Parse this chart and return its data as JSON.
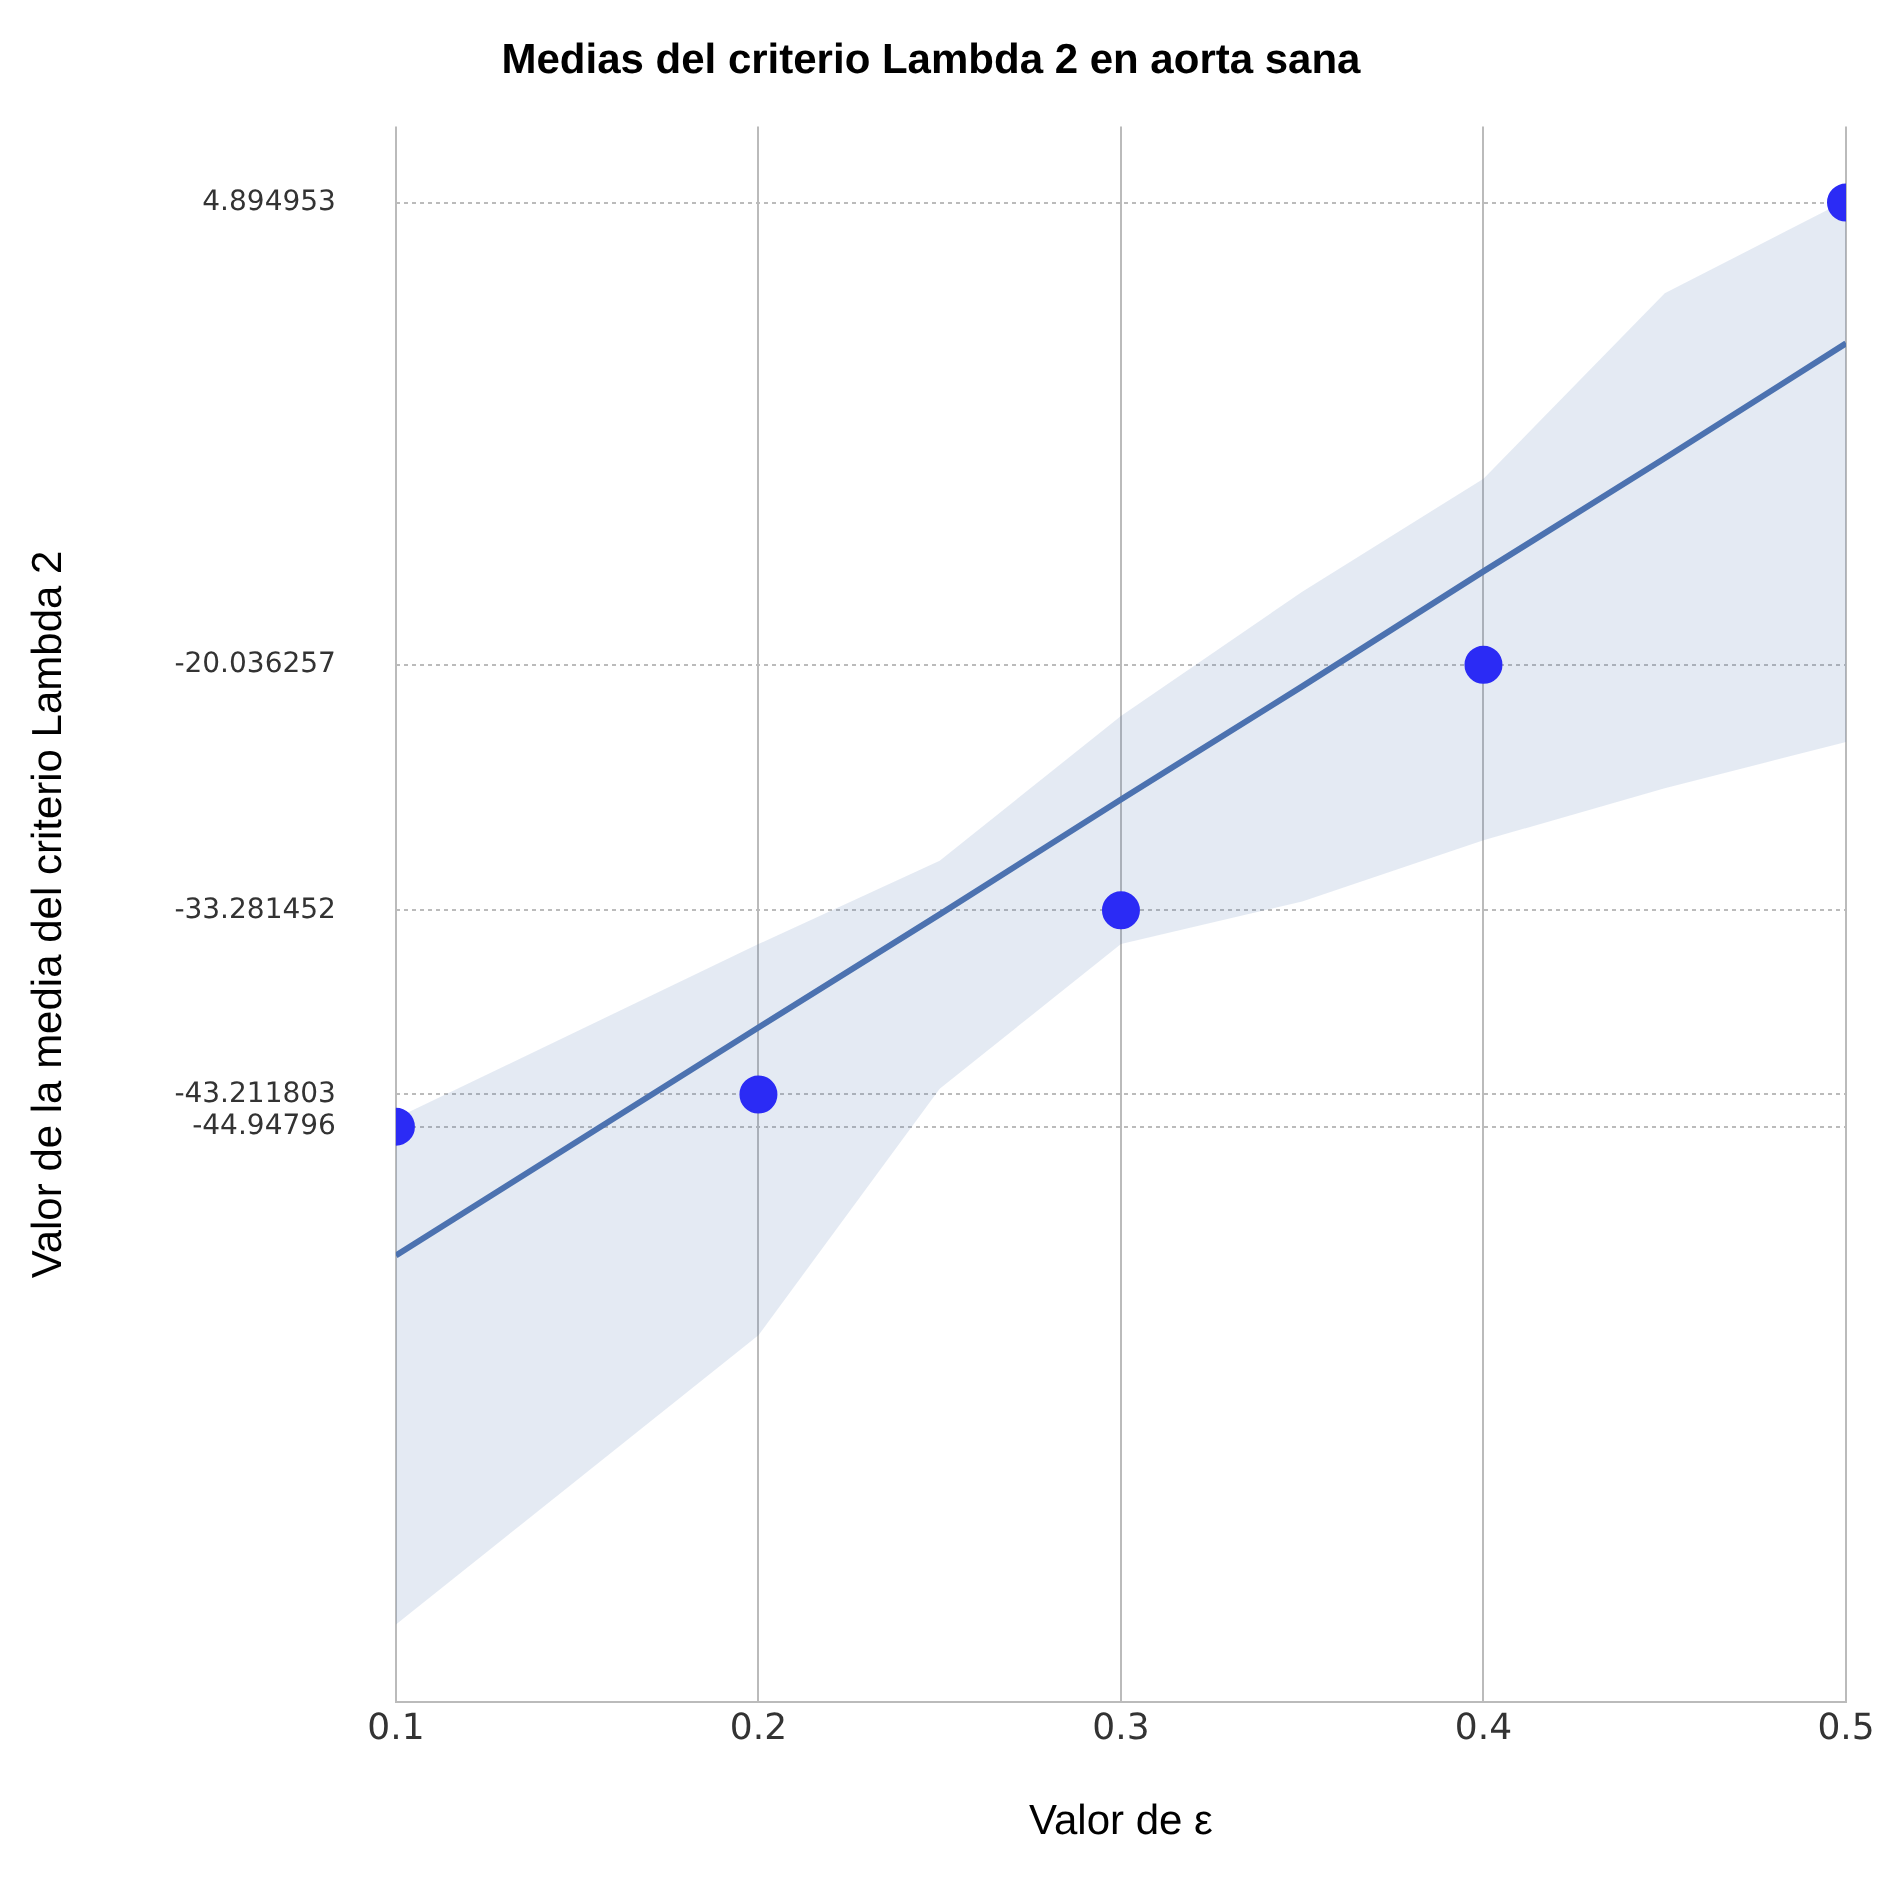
{
  "chart_data": {
    "type": "scatter",
    "title": "Medias del criterio Lambda 2 en aorta sana",
    "xlabel": "Valor de ε",
    "ylabel": "Valor de la media del criterio Lambda 2",
    "xlim": [
      0.1,
      0.5
    ],
    "xticks": [
      0.1,
      0.2,
      0.3,
      0.4,
      0.5
    ],
    "ylim": [
      -76,
      9
    ],
    "yticks": [
      4.894953,
      -20.036257,
      -33.281452,
      -43.211803,
      -44.94796
    ],
    "grid": true,
    "marker": "circle",
    "series": [
      {
        "type": "line",
        "color": "#4c72b0",
        "x": [
          0.1,
          0.2,
          0.25,
          0.3,
          0.35,
          0.4,
          0.45,
          0.5
        ],
        "values": [
          -51.9,
          -39.6,
          -33.5,
          -27.3,
          -21.2,
          -15.0,
          -8.9,
          -2.7
        ],
        "lower": [
          -71.8,
          -56.2,
          -42.9,
          -35.1,
          -32.8,
          -29.5,
          -26.7,
          -24.2
        ],
        "upper": [
          -44.5,
          -35.1,
          -30.6,
          -22.8,
          -16.1,
          -10.0,
          0.0,
          5.0
        ],
        "marker": "none"
      },
      {
        "color": "#2b2bf5",
        "x": [
          0.1,
          0.2,
          0.3,
          0.4,
          0.5
        ],
        "values": [
          -44.94796,
          -43.211803,
          -33.281452,
          -20.036257,
          4.894953
        ]
      }
    ]
  }
}
